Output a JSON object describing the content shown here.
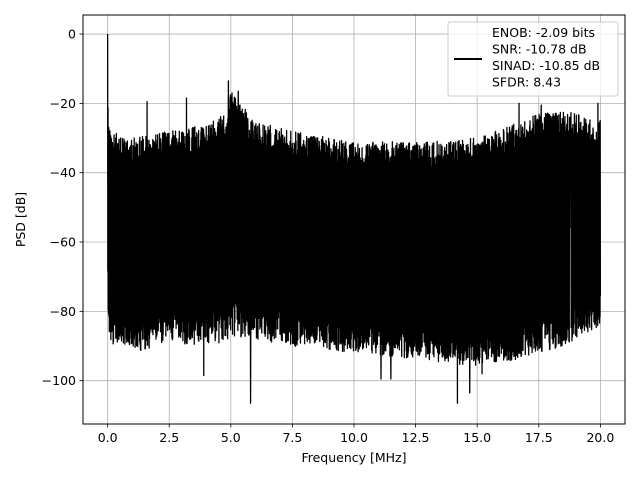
{
  "chart_data": {
    "type": "line",
    "title": "",
    "xlabel": "Frequency [MHz]",
    "ylabel": "PSD [dB]",
    "xlim": [
      -1.0,
      21.0
    ],
    "ylim": [
      -112.5,
      5.5
    ],
    "xticks": [
      0.0,
      2.5,
      5.0,
      7.5,
      10.0,
      12.5,
      15.0,
      17.5,
      20.0
    ],
    "xtick_labels": [
      "0.0",
      "2.5",
      "5.0",
      "7.5",
      "10.0",
      "12.5",
      "15.0",
      "17.5",
      "20.0"
    ],
    "yticks": [
      0,
      -20,
      -40,
      -60,
      -80,
      -100
    ],
    "ytick_labels": [
      "0",
      "−20",
      "−40",
      "−60",
      "−80",
      "−100"
    ],
    "grid": true,
    "legend": {
      "placement": "top-right",
      "line_color": "#000000",
      "entries": [
        "ENOB: -2.09 bits",
        "SNR: -10.78 dB",
        "SINAD: -10.85 dB",
        "SFDR: 8.43"
      ]
    },
    "series": [
      {
        "color": "#000000",
        "x_range": [
          0.0,
          20.0
        ],
        "noise_floor_band_db": [
          -85,
          -35
        ],
        "envelope": {
          "x": [
            0.0,
            0.02,
            0.1,
            1.0,
            2.5,
            4.0,
            4.8,
            5.0,
            6.0,
            7.5,
            10.0,
            12.5,
            15.0,
            16.5,
            17.5,
            18.5,
            20.0
          ],
          "upper_db": [
            0.0,
            -26,
            -30,
            -32,
            -30,
            -28,
            -25,
            -18,
            -27,
            -30,
            -33,
            -33,
            -32,
            -28,
            -25,
            -24,
            -27
          ],
          "lower_db": [
            -65,
            -78,
            -85,
            -88,
            -85,
            -86,
            -85,
            -83,
            -84,
            -86,
            -88,
            -90,
            -92,
            -90,
            -88,
            -86,
            -80
          ]
        },
        "peaks": [
          {
            "x": 0.0,
            "y": 0.0
          },
          {
            "x": 1.6,
            "y": -19.5
          },
          {
            "x": 3.2,
            "y": -18.5
          },
          {
            "x": 4.9,
            "y": -13.5
          },
          {
            "x": 5.3,
            "y": -16.5
          },
          {
            "x": 5.8,
            "y": -17.0
          },
          {
            "x": 16.7,
            "y": -20.0
          },
          {
            "x": 17.6,
            "y": -20.5
          },
          {
            "x": 19.9,
            "y": -20.0
          }
        ],
        "troughs": [
          {
            "x": 3.9,
            "y": -98.5
          },
          {
            "x": 5.8,
            "y": -106.5
          },
          {
            "x": 11.1,
            "y": -99.5
          },
          {
            "x": 11.5,
            "y": -99.5
          },
          {
            "x": 14.2,
            "y": -106.5
          },
          {
            "x": 14.7,
            "y": -103.5
          },
          {
            "x": 15.2,
            "y": -98.0
          }
        ]
      }
    ]
  }
}
